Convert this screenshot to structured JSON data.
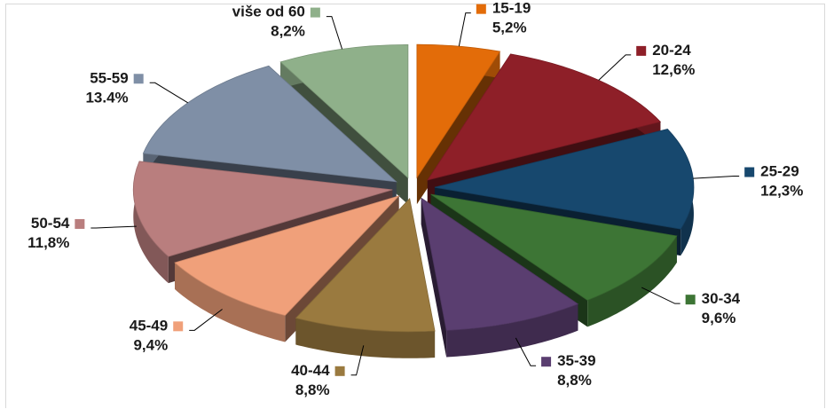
{
  "chart_data": {
    "type": "pie",
    "variant": "3d-exploded",
    "title": "",
    "legend": "inline-labels",
    "categories": [
      "15-19",
      "20-24",
      "25-29",
      "30-34",
      "35-39",
      "40-44",
      "45-49",
      "50-54",
      "55-59",
      "više od 60"
    ],
    "values": [
      5.2,
      12.6,
      12.3,
      9.6,
      8.8,
      8.8,
      9.4,
      11.8,
      13.4,
      8.2
    ],
    "value_labels": [
      "5,2%",
      "12,6%",
      "12,3%",
      "9,6%",
      "8,8%",
      "8,8%",
      "9,4%",
      "11,8%",
      "13.4%",
      "8,2%"
    ],
    "colors": [
      "#e36c09",
      "#8e1f28",
      "#17486e",
      "#3d7535",
      "#5a3e70",
      "#9a7a3f",
      "#f0a07a",
      "#b97e7e",
      "#7f8fa6",
      "#8fb08a"
    ]
  }
}
